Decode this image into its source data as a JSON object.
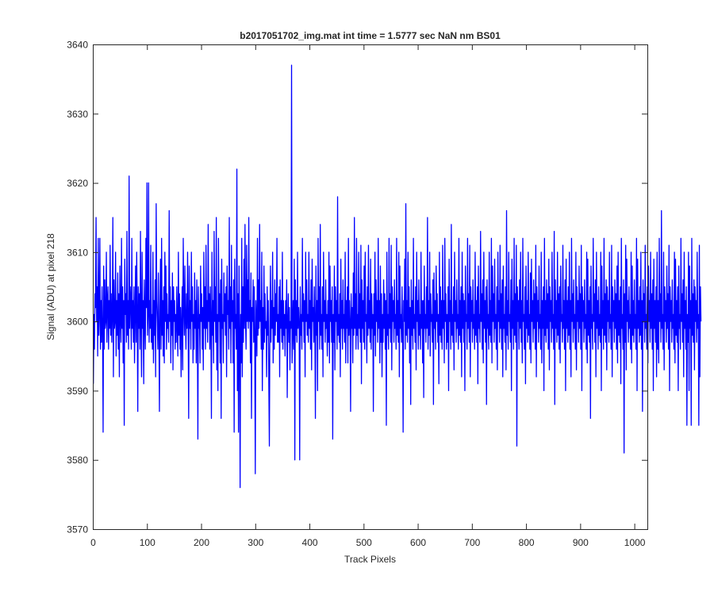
{
  "chart_data": {
    "type": "line",
    "title": "b2017051702_img.mat int time = 1.5777 sec  NaN nm BS01",
    "xlabel": "Track Pixels",
    "ylabel": "Signal (ADU) at pixel 218",
    "xlim": [
      0,
      1024
    ],
    "ylim": [
      3570,
      3640
    ],
    "xticks": [
      0,
      100,
      200,
      300,
      400,
      500,
      600,
      700,
      800,
      900,
      1000
    ],
    "yticks": [
      3570,
      3580,
      3590,
      3600,
      3610,
      3620,
      3630,
      3640
    ],
    "grid": false,
    "line_color": "#0000ff",
    "series": [
      {
        "x_start": 1,
        "x_step": 1,
        "values": [
          3591,
          3601,
          3596,
          3604,
          3602,
          3615,
          3600,
          3605,
          3595,
          3612,
          3598,
          3601,
          3612,
          3596,
          3603,
          3597,
          3605,
          3599,
          3584,
          3608,
          3596,
          3606,
          3599,
          3600,
          3610,
          3597,
          3603,
          3605,
          3596,
          3603,
          3599,
          3611,
          3598,
          3604,
          3597,
          3601,
          3615,
          3592,
          3606,
          3599,
          3600,
          3610,
          3595,
          3603,
          3598,
          3607,
          3596,
          3604,
          3592,
          3608,
          3601,
          3597,
          3612,
          3599,
          3605,
          3594,
          3603,
          3585,
          3609,
          3601,
          3604,
          3597,
          3613,
          3598,
          3603,
          3596,
          3621,
          3599,
          3605,
          3603,
          3596,
          3612,
          3599,
          3603,
          3597,
          3605,
          3594,
          3601,
          3608,
          3597,
          3610,
          3602,
          3587,
          3605,
          3599,
          3604,
          3596,
          3613,
          3600,
          3592,
          3610,
          3599,
          3603,
          3591,
          3606,
          3600,
          3596,
          3612,
          3602,
          3620,
          3598,
          3601,
          3620,
          3597,
          3603,
          3599,
          3611,
          3597,
          3601,
          3596,
          3610,
          3594,
          3603,
          3598,
          3606,
          3592,
          3617,
          3603,
          3600,
          3596,
          3607,
          3599,
          3587,
          3602,
          3609,
          3596,
          3612,
          3598,
          3603,
          3595,
          3605,
          3594,
          3610,
          3600,
          3608,
          3596,
          3604,
          3599,
          3601,
          3597,
          3616,
          3600,
          3605,
          3594,
          3603,
          3598,
          3607,
          3593,
          3605,
          3600,
          3603,
          3596,
          3601,
          3597,
          3605,
          3599,
          3595,
          3610,
          3598,
          3604,
          3596,
          3602,
          3592,
          3600,
          3605,
          3593,
          3612,
          3602,
          3598,
          3608,
          3600,
          3596,
          3604,
          3599,
          3610,
          3600,
          3586,
          3608,
          3599,
          3603,
          3596,
          3610,
          3600,
          3605,
          3594,
          3601,
          3596,
          3607,
          3599,
          3603,
          3594,
          3606,
          3600,
          3583,
          3605,
          3599,
          3601,
          3594,
          3608,
          3600,
          3604,
          3596,
          3602,
          3593,
          3610,
          3599,
          3605,
          3596,
          3611,
          3599,
          3603,
          3597,
          3614,
          3600,
          3604,
          3596,
          3605,
          3600,
          3586,
          3610,
          3598,
          3603,
          3594,
          3613,
          3600,
          3605,
          3597,
          3615,
          3593,
          3601,
          3590,
          3612,
          3600,
          3604,
          3594,
          3606,
          3586,
          3609,
          3599,
          3601,
          3594,
          3607,
          3600,
          3604,
          3598,
          3605,
          3592,
          3608,
          3601,
          3603,
          3596,
          3615,
          3599,
          3605,
          3594,
          3611,
          3600,
          3603,
          3594,
          3606,
          3584,
          3609,
          3599,
          3601,
          3596,
          3622,
          3590,
          3604,
          3584,
          3608,
          3599,
          3576,
          3601,
          3594,
          3612,
          3592,
          3605,
          3597,
          3609,
          3599,
          3614,
          3600,
          3596,
          3611,
          3600,
          3606,
          3599,
          3615,
          3600,
          3603,
          3594,
          3607,
          3586,
          3602,
          3600,
          3606,
          3597,
          3605,
          3598,
          3578,
          3603,
          3600,
          3595,
          3612,
          3598,
          3606,
          3599,
          3614,
          3600,
          3603,
          3596,
          3610,
          3590,
          3602,
          3596,
          3608,
          3597,
          3604,
          3599,
          3600,
          3592,
          3605,
          3598,
          3603,
          3591,
          3582,
          3600,
          3608,
          3597,
          3603,
          3599,
          3610,
          3594,
          3602,
          3596,
          3606,
          3598,
          3604,
          3600,
          3612,
          3597,
          3601,
          3597,
          3605,
          3592,
          3606,
          3599,
          3603,
          3597,
          3610,
          3596,
          3603,
          3598,
          3601,
          3595,
          3603,
          3599,
          3606,
          3589,
          3600,
          3604,
          3597,
          3602,
          3593,
          3600,
          3599,
          3637,
          3594,
          3598,
          3603,
          3596,
          3609,
          3580,
          3606,
          3598,
          3603,
          3597,
          3610,
          3599,
          3602,
          3600,
          3580,
          3605,
          3598,
          3601,
          3596,
          3612,
          3600,
          3604,
          3597,
          3603,
          3592,
          3610,
          3600,
          3606,
          3598,
          3601,
          3597,
          3610,
          3599,
          3603,
          3596,
          3606,
          3593,
          3609,
          3600,
          3602,
          3597,
          3605,
          3600,
          3586,
          3608,
          3598,
          3603,
          3590,
          3612,
          3600,
          3605,
          3596,
          3614,
          3598,
          3601,
          3596,
          3605,
          3592,
          3610,
          3600,
          3603,
          3597,
          3606,
          3599,
          3601,
          3595,
          3603,
          3597,
          3610,
          3594,
          3608,
          3600,
          3603,
          3597,
          3605,
          3583,
          3601,
          3597,
          3608,
          3593,
          3605,
          3600,
          3603,
          3596,
          3618,
          3598,
          3601,
          3597,
          3604,
          3592,
          3609,
          3599,
          3603,
          3596,
          3606,
          3599,
          3601,
          3597,
          3610,
          3594,
          3603,
          3599,
          3605,
          3594,
          3612,
          3598,
          3603,
          3600,
          3587,
          3604,
          3599,
          3602,
          3594,
          3607,
          3598,
          3615,
          3599,
          3604,
          3596,
          3612,
          3598,
          3601,
          3596,
          3610,
          3599,
          3604,
          3597,
          3611,
          3591,
          3606,
          3599,
          3603,
          3597,
          3608,
          3596,
          3610,
          3600,
          3601,
          3594,
          3605,
          3598,
          3611,
          3599,
          3603,
          3597,
          3609,
          3596,
          3604,
          3599,
          3601,
          3587,
          3604,
          3598,
          3610,
          3595,
          3606,
          3600,
          3603,
          3597,
          3612,
          3599,
          3603,
          3594,
          3608,
          3597,
          3604,
          3592,
          3601,
          3597,
          3606,
          3599,
          3604,
          3596,
          3603,
          3585,
          3610,
          3598,
          3601,
          3596,
          3612,
          3599,
          3604,
          3597,
          3611,
          3593,
          3605,
          3600,
          3603,
          3597,
          3606,
          3599,
          3601,
          3596,
          3612,
          3598,
          3603,
          3597,
          3610,
          3592,
          3608,
          3599,
          3601,
          3597,
          3605,
          3599,
          3584,
          3603,
          3600,
          3609,
          3596,
          3617,
          3598,
          3603,
          3597,
          3610,
          3599,
          3605,
          3594,
          3602,
          3588,
          3606,
          3598,
          3603,
          3596,
          3612,
          3599,
          3601,
          3597,
          3605,
          3593,
          3610,
          3600,
          3603,
          3596,
          3606,
          3598,
          3601,
          3596,
          3610,
          3599,
          3603,
          3594,
          3603,
          3589,
          3608,
          3599,
          3601,
          3597,
          3605,
          3599,
          3615,
          3596,
          3603,
          3598,
          3610,
          3595,
          3604,
          3600,
          3601,
          3597,
          3606,
          3588,
          3607,
          3599,
          3603,
          3596,
          3608,
          3600,
          3604,
          3597,
          3601,
          3591,
          3610,
          3598,
          3605,
          3597,
          3603,
          3596,
          3611,
          3599,
          3603,
          3594,
          3612,
          3600,
          3604,
          3596,
          3601,
          3597,
          3605,
          3590,
          3609,
          3600,
          3603,
          3596,
          3614,
          3598,
          3601,
          3597,
          3605,
          3593,
          3610,
          3600,
          3603,
          3597,
          3606,
          3599,
          3601,
          3596,
          3612,
          3598,
          3603,
          3597,
          3605,
          3592,
          3610,
          3599,
          3604,
          3597,
          3603,
          3590,
          3608,
          3600,
          3601,
          3596,
          3612,
          3599,
          3604,
          3597,
          3611,
          3592,
          3605,
          3600,
          3603,
          3597,
          3606,
          3599,
          3601,
          3596,
          3610,
          3598,
          3603,
          3597,
          3605,
          3591,
          3608,
          3599,
          3601,
          3597,
          3613,
          3600,
          3604,
          3596,
          3606,
          3594,
          3610,
          3599,
          3603,
          3597,
          3605,
          3588,
          3606,
          3599,
          3601,
          3596,
          3610,
          3598,
          3603,
          3597,
          3612,
          3594,
          3608,
          3600,
          3604,
          3597,
          3609,
          3599,
          3601,
          3596,
          3605,
          3593,
          3610,
          3600,
          3603,
          3597,
          3611,
          3599,
          3604,
          3596,
          3606,
          3592,
          3608,
          3599,
          3601,
          3597,
          3605,
          3593,
          3616,
          3598,
          3603,
          3596,
          3610,
          3600,
          3601,
          3597,
          3606,
          3590,
          3609,
          3599,
          3603,
          3596,
          3612,
          3598,
          3604,
          3597,
          3611,
          3582,
          3605,
          3600,
          3603,
          3596,
          3606,
          3599,
          3610,
          3597,
          3603,
          3594,
          3612,
          3600,
          3601,
          3596,
          3605,
          3591,
          3608,
          3599,
          3603,
          3597,
          3610,
          3598,
          3601,
          3596,
          3607,
          3594,
          3609,
          3600,
          3603,
          3597,
          3606,
          3599,
          3604,
          3596,
          3611,
          3592,
          3605,
          3600,
          3603,
          3597,
          3608,
          3599,
          3601,
          3596,
          3610,
          3594,
          3603,
          3599,
          3605,
          3590,
          3612,
          3598,
          3603,
          3597,
          3606,
          3599,
          3604,
          3596,
          3609,
          3593,
          3605,
          3600,
          3603,
          3597,
          3610,
          3599,
          3601,
          3596,
          3613,
          3588,
          3606,
          3599,
          3603,
          3597,
          3610,
          3598,
          3604,
          3596,
          3605,
          3594,
          3608,
          3600,
          3601,
          3597,
          3611,
          3599,
          3603,
          3596,
          3606,
          3590,
          3609,
          3599,
          3603,
          3597,
          3605,
          3598,
          3610,
          3596,
          3603,
          3592,
          3612,
          3600,
          3604,
          3597,
          3606,
          3599,
          3601,
          3596,
          3610,
          3593,
          3605,
          3600,
          3603,
          3597,
          3608,
          3599,
          3604,
          3596,
          3611,
          3590,
          3605,
          3600,
          3603,
          3597,
          3606,
          3599,
          3601,
          3596,
          3610,
          3594,
          3609,
          3598,
          3603,
          3597,
          3605,
          3586,
          3608,
          3599,
          3601,
          3596,
          3612,
          3600,
          3604,
          3597,
          3606,
          3592,
          3610,
          3599,
          3603,
          3596,
          3605,
          3598,
          3601,
          3597,
          3610,
          3590,
          3608,
          3599,
          3603,
          3596,
          3612,
          3598,
          3604,
          3597,
          3606,
          3593,
          3605,
          3600,
          3603,
          3597,
          3610,
          3599,
          3601,
          3596,
          3611,
          3592,
          3605,
          3600,
          3603,
          3597,
          3606,
          3599,
          3604,
          3596,
          3608,
          3594,
          3610,
          3598,
          3603,
          3597,
          3605,
          3591,
          3612,
          3599,
          3601,
          3596,
          3606,
          3581,
          3604,
          3597,
          3611,
          3593,
          3609,
          3600,
          3603,
          3597,
          3605,
          3599,
          3601,
          3596,
          3610,
          3594,
          3608,
          3598,
          3603,
          3597,
          3606,
          3599,
          3601,
          3596,
          3612,
          3590,
          3609,
          3599,
          3603,
          3597,
          3605,
          3598,
          3610,
          3596,
          3603,
          3587,
          3606,
          3600,
          3604,
          3597,
          3611,
          3599,
          3601,
          3596,
          3605,
          3594,
          3608,
          3600,
          3603,
          3597,
          3610,
          3599,
          3604,
          3596,
          3606,
          3590,
          3609,
          3599,
          3603,
          3597,
          3605,
          3592,
          3610,
          3596,
          3603,
          3594,
          3612,
          3600,
          3604,
          3597,
          3616,
          3599,
          3601,
          3596,
          3610,
          3593,
          3605,
          3600,
          3603,
          3597,
          3608,
          3599,
          3604,
          3596,
          3611,
          3590,
          3605,
          3600,
          3603,
          3597,
          3606,
          3599,
          3601,
          3596,
          3610,
          3594,
          3609,
          3598,
          3603,
          3597,
          3605,
          3590,
          3608,
          3599,
          3601,
          3596,
          3612,
          3600,
          3604,
          3597,
          3606,
          3592,
          3610,
          3599,
          3603,
          3596,
          3605,
          3585,
          3601,
          3597,
          3610,
          3590,
          3608,
          3599,
          3603,
          3585,
          3612,
          3598,
          3604,
          3597,
          3606,
          3593,
          3605,
          3600,
          3603,
          3597,
          3610,
          3599,
          3601,
          3585,
          3611,
          3592,
          3605,
          3600
        ]
      }
    ]
  }
}
